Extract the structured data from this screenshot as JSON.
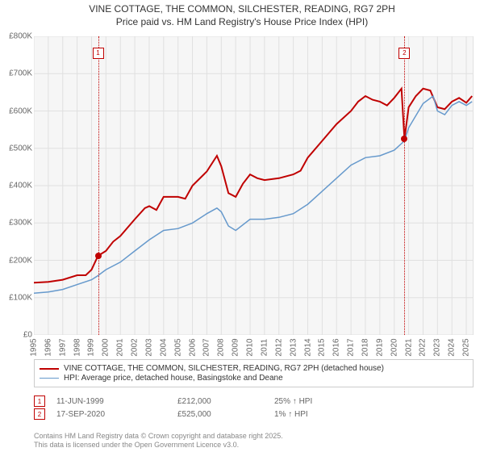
{
  "title": {
    "line1": "VINE COTTAGE, THE COMMON, SILCHESTER, READING, RG7 2PH",
    "line2": "Price paid vs. HM Land Registry's House Price Index (HPI)",
    "fontsize": 12,
    "color": "#333333"
  },
  "chart": {
    "type": "line",
    "background_color": "#f6f6f6",
    "grid_color": "#e0e0e0",
    "border_color": "#cccccc",
    "x_range": [
      1995,
      2025.5
    ],
    "y_range": [
      0,
      800000
    ],
    "y_ticks": [
      0,
      100000,
      200000,
      300000,
      400000,
      500000,
      600000,
      700000,
      800000
    ],
    "y_tick_labels": [
      "£0",
      "£100K",
      "£200K",
      "£300K",
      "£400K",
      "£500K",
      "£600K",
      "£700K",
      "£800K"
    ],
    "x_ticks": [
      1995,
      1996,
      1997,
      1998,
      1999,
      2000,
      2001,
      2002,
      2003,
      2004,
      2005,
      2006,
      2007,
      2008,
      2009,
      2010,
      2011,
      2012,
      2013,
      2014,
      2015,
      2016,
      2017,
      2018,
      2019,
      2020,
      2021,
      2022,
      2023,
      2024,
      2025
    ],
    "tick_fontsize": 10,
    "tick_color": "#666666",
    "series": [
      {
        "name": "price_paid",
        "label": "VINE COTTAGE, THE COMMON, SILCHESTER, READING, RG7 2PH (detached house)",
        "color": "#c00000",
        "line_width": 2,
        "data": [
          [
            1995,
            140000
          ],
          [
            1996,
            142000
          ],
          [
            1997,
            148000
          ],
          [
            1998,
            160000
          ],
          [
            1998.6,
            160000
          ],
          [
            1999,
            175000
          ],
          [
            1999.45,
            212000
          ],
          [
            2000,
            225000
          ],
          [
            2000.5,
            250000
          ],
          [
            2001,
            265000
          ],
          [
            2002,
            310000
          ],
          [
            2002.7,
            340000
          ],
          [
            2003,
            345000
          ],
          [
            2003.5,
            335000
          ],
          [
            2004,
            370000
          ],
          [
            2005,
            370000
          ],
          [
            2005.5,
            365000
          ],
          [
            2006,
            400000
          ],
          [
            2007,
            438000
          ],
          [
            2007.7,
            480000
          ],
          [
            2008,
            452000
          ],
          [
            2008.5,
            380000
          ],
          [
            2009,
            370000
          ],
          [
            2009.5,
            405000
          ],
          [
            2010,
            430000
          ],
          [
            2010.5,
            420000
          ],
          [
            2011,
            415000
          ],
          [
            2012,
            420000
          ],
          [
            2013,
            430000
          ],
          [
            2013.5,
            440000
          ],
          [
            2014,
            475000
          ],
          [
            2015,
            520000
          ],
          [
            2016,
            565000
          ],
          [
            2017,
            600000
          ],
          [
            2017.5,
            625000
          ],
          [
            2018,
            640000
          ],
          [
            2018.5,
            630000
          ],
          [
            2019,
            625000
          ],
          [
            2019.5,
            615000
          ],
          [
            2020,
            635000
          ],
          [
            2020.5,
            660000
          ],
          [
            2020.71,
            525000
          ],
          [
            2021,
            610000
          ],
          [
            2021.5,
            640000
          ],
          [
            2022,
            660000
          ],
          [
            2022.5,
            655000
          ],
          [
            2023,
            610000
          ],
          [
            2023.5,
            605000
          ],
          [
            2024,
            625000
          ],
          [
            2024.5,
            635000
          ],
          [
            2025,
            622000
          ],
          [
            2025.4,
            640000
          ]
        ]
      },
      {
        "name": "hpi",
        "label": "HPI: Average price, detached house, Basingstoke and Deane",
        "color": "#6699cc",
        "line_width": 1.5,
        "data": [
          [
            1995,
            112000
          ],
          [
            1996,
            115000
          ],
          [
            1997,
            122000
          ],
          [
            1998,
            135000
          ],
          [
            1999,
            148000
          ],
          [
            1999.45,
            159000
          ],
          [
            2000,
            175000
          ],
          [
            2001,
            195000
          ],
          [
            2002,
            225000
          ],
          [
            2003,
            255000
          ],
          [
            2004,
            280000
          ],
          [
            2005,
            285000
          ],
          [
            2006,
            300000
          ],
          [
            2007,
            325000
          ],
          [
            2007.7,
            340000
          ],
          [
            2008,
            330000
          ],
          [
            2008.5,
            292000
          ],
          [
            2009,
            280000
          ],
          [
            2010,
            310000
          ],
          [
            2011,
            310000
          ],
          [
            2012,
            315000
          ],
          [
            2013,
            325000
          ],
          [
            2014,
            350000
          ],
          [
            2015,
            385000
          ],
          [
            2016,
            420000
          ],
          [
            2017,
            455000
          ],
          [
            2018,
            475000
          ],
          [
            2019,
            480000
          ],
          [
            2020,
            495000
          ],
          [
            2020.71,
            520000
          ],
          [
            2021,
            555000
          ],
          [
            2022,
            620000
          ],
          [
            2022.7,
            640000
          ],
          [
            2023,
            600000
          ],
          [
            2023.5,
            590000
          ],
          [
            2024,
            615000
          ],
          [
            2024.5,
            625000
          ],
          [
            2025,
            615000
          ],
          [
            2025.4,
            625000
          ]
        ]
      }
    ],
    "sale_markers": [
      {
        "n": "1",
        "x": 1999.45,
        "marker_y_top": 755000,
        "dot_y": 212000
      },
      {
        "n": "2",
        "x": 2020.71,
        "marker_y_top": 755000,
        "dot_y": 525000
      }
    ]
  },
  "legend": {
    "border_color": "#cccccc",
    "items": [
      {
        "color": "#c00000",
        "width": 2,
        "label": "VINE COTTAGE, THE COMMON, SILCHESTER, READING, RG7 2PH (detached house)"
      },
      {
        "color": "#6699cc",
        "width": 1.5,
        "label": "HPI: Average price, detached house, Basingstoke and Deane"
      }
    ]
  },
  "sales": [
    {
      "n": "1",
      "date": "11-JUN-1999",
      "price": "£212,000",
      "diff": "25% ↑ HPI"
    },
    {
      "n": "2",
      "date": "17-SEP-2020",
      "price": "£525,000",
      "diff": "1% ↑ HPI"
    }
  ],
  "footer": {
    "line1": "Contains HM Land Registry data © Crown copyright and database right 2025.",
    "line2": "This data is licensed under the Open Government Licence v3.0.",
    "color": "#888888",
    "fontsize": 9
  }
}
